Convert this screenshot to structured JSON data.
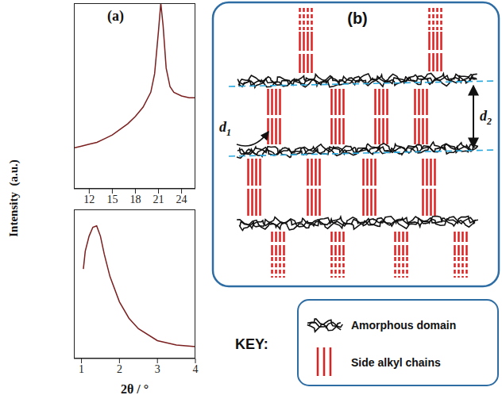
{
  "chart_data": [
    {
      "type": "line",
      "panel": "(a)",
      "ylabel": "Intensity  (a.u.)",
      "x": [
        10,
        11,
        12,
        13,
        14,
        15,
        16,
        17,
        18,
        19,
        20,
        20.5,
        21,
        21.3,
        21.6,
        22,
        22.5,
        23,
        24,
        25,
        25.8
      ],
      "values": [
        22,
        23,
        24,
        25,
        27,
        29,
        32,
        35,
        39,
        44,
        52,
        62,
        85,
        100,
        88,
        65,
        55,
        52,
        50,
        49,
        49
      ],
      "color": "#7b1f1f",
      "xlim": [
        10,
        25.8
      ],
      "xticks": [
        12,
        15,
        18,
        21,
        24
      ],
      "ylim": [
        0,
        100
      ],
      "tick_labels": "x"
    },
    {
      "type": "line",
      "xlabel": "2θ / °",
      "x": [
        1.05,
        1.1,
        1.2,
        1.3,
        1.4,
        1.5,
        1.6,
        1.75,
        2,
        2.25,
        2.5,
        3,
        3.5,
        4
      ],
      "values": [
        60,
        72,
        82,
        88,
        89,
        82,
        70,
        55,
        38,
        27,
        20,
        12,
        9,
        8
      ],
      "color": "#7b1f1f",
      "xlim": [
        0.8,
        4
      ],
      "xticks": [
        1,
        2,
        3,
        4
      ],
      "ylim": [
        0,
        100
      ],
      "tick_labels": "x"
    }
  ],
  "diagram": {
    "panel": "(b)",
    "spacings": [
      {
        "symbol": "d",
        "subscript": "1"
      },
      {
        "symbol": "d",
        "subscript": "2"
      }
    ],
    "key": {
      "title": "KEY:",
      "items": [
        {
          "label": "Amorphous domain"
        },
        {
          "label": "Side alkyl chains"
        }
      ]
    }
  }
}
